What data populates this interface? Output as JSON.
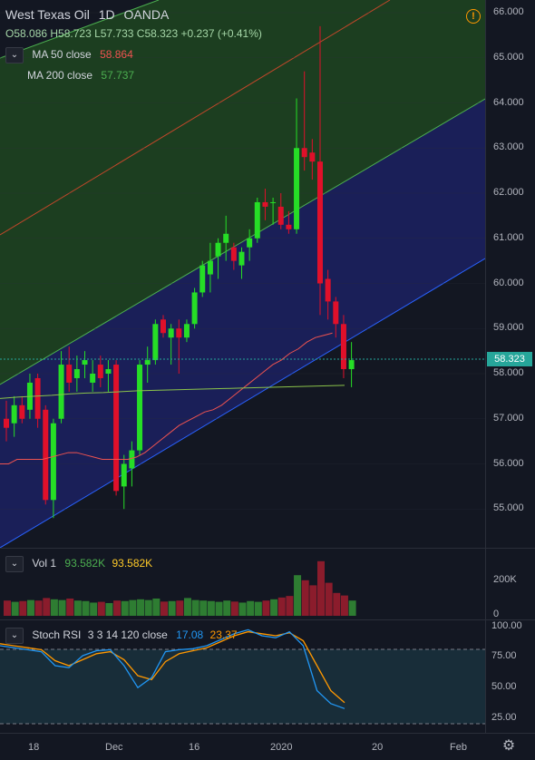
{
  "header": {
    "symbol": "West Texas Oil",
    "interval": "1D",
    "exchange": "OANDA",
    "ohlc": "O58.086  H58.723  L57.733  C58.323  +0.237  (+0.41%)",
    "alert_icon": "alert-icon"
  },
  "indicators": {
    "toggle_icon": "chevron-down-icon",
    "ma50": {
      "label": "MA 50 close",
      "value": "58.864",
      "color": "#ef5350"
    },
    "ma200": {
      "label": "MA 200 close",
      "value": "57.737",
      "color": "#4caf50"
    }
  },
  "price_axis": {
    "labels": [
      "66.000",
      "65.000",
      "64.000",
      "63.000",
      "62.000",
      "61.000",
      "60.000",
      "59.000",
      "58.000",
      "57.000",
      "56.000",
      "55.000"
    ],
    "last_price": "58.323",
    "last_price_color": "#26a69a"
  },
  "volume": {
    "label": "Vol",
    "param": "1",
    "value1": "93.582K",
    "value2": "93.582K",
    "axis_labels": [
      "200K",
      "0"
    ]
  },
  "stoch_rsi": {
    "label": "Stoch RSI",
    "params": "3 3 14 120 close",
    "k_value": "17.08",
    "d_value": "23.37",
    "k_color": "#2196f3",
    "d_color": "#ff9800",
    "axis_labels": [
      "100.00",
      "75.00",
      "50.00",
      "25.00"
    ]
  },
  "time_axis": {
    "labels": [
      "18",
      "Dec",
      "16",
      "2020",
      "20",
      "Feb"
    ],
    "settings_icon": "gear-icon"
  },
  "chart_data": {
    "type": "candlestick",
    "ylim": [
      54.0,
      66.0
    ],
    "candles": [
      {
        "o": 57.0,
        "h": 57.4,
        "l": 56.5,
        "c": 56.8
      },
      {
        "o": 56.9,
        "h": 57.5,
        "l": 56.6,
        "c": 57.3
      },
      {
        "o": 57.3,
        "h": 57.5,
        "l": 56.9,
        "c": 57.0
      },
      {
        "o": 57.2,
        "h": 58.0,
        "l": 57.0,
        "c": 57.8
      },
      {
        "o": 57.9,
        "h": 58.0,
        "l": 56.8,
        "c": 57.0
      },
      {
        "o": 57.2,
        "h": 57.3,
        "l": 55.1,
        "c": 55.2
      },
      {
        "o": 55.2,
        "h": 57.0,
        "l": 54.8,
        "c": 56.9
      },
      {
        "o": 57.0,
        "h": 58.5,
        "l": 56.9,
        "c": 58.2
      },
      {
        "o": 58.2,
        "h": 58.6,
        "l": 57.6,
        "c": 57.8
      },
      {
        "o": 57.9,
        "h": 58.4,
        "l": 57.6,
        "c": 58.1
      },
      {
        "o": 58.2,
        "h": 58.5,
        "l": 57.9,
        "c": 58.3
      },
      {
        "o": 57.8,
        "h": 58.3,
        "l": 57.6,
        "c": 58.0
      },
      {
        "o": 58.2,
        "h": 58.4,
        "l": 57.7,
        "c": 57.9
      },
      {
        "o": 58.0,
        "h": 58.3,
        "l": 57.6,
        "c": 58.1
      },
      {
        "o": 58.2,
        "h": 58.3,
        "l": 55.3,
        "c": 55.4
      },
      {
        "o": 55.5,
        "h": 56.2,
        "l": 55.0,
        "c": 56.0
      },
      {
        "o": 55.9,
        "h": 56.5,
        "l": 55.5,
        "c": 56.3
      },
      {
        "o": 56.3,
        "h": 58.3,
        "l": 56.2,
        "c": 58.2
      },
      {
        "o": 58.2,
        "h": 58.6,
        "l": 57.8,
        "c": 58.3
      },
      {
        "o": 58.3,
        "h": 59.2,
        "l": 58.2,
        "c": 59.1
      },
      {
        "o": 59.2,
        "h": 59.3,
        "l": 58.8,
        "c": 58.9
      },
      {
        "o": 58.8,
        "h": 59.1,
        "l": 58.2,
        "c": 59.0
      },
      {
        "o": 59.0,
        "h": 59.2,
        "l": 58.0,
        "c": 58.8
      },
      {
        "o": 58.8,
        "h": 59.2,
        "l": 58.7,
        "c": 59.1
      },
      {
        "o": 59.1,
        "h": 59.9,
        "l": 59.0,
        "c": 59.8
      },
      {
        "o": 59.8,
        "h": 60.5,
        "l": 59.7,
        "c": 60.4
      },
      {
        "o": 60.2,
        "h": 60.9,
        "l": 59.8,
        "c": 60.5
      },
      {
        "o": 60.6,
        "h": 61.0,
        "l": 60.1,
        "c": 60.9
      },
      {
        "o": 60.9,
        "h": 61.5,
        "l": 60.5,
        "c": 61.1
      },
      {
        "o": 60.8,
        "h": 60.9,
        "l": 60.3,
        "c": 60.5
      },
      {
        "o": 60.4,
        "h": 60.8,
        "l": 60.1,
        "c": 60.7
      },
      {
        "o": 60.8,
        "h": 61.2,
        "l": 60.5,
        "c": 61.0
      },
      {
        "o": 61.0,
        "h": 61.9,
        "l": 60.9,
        "c": 61.8
      },
      {
        "o": 61.8,
        "h": 62.1,
        "l": 61.4,
        "c": 61.7
      },
      {
        "o": 61.8,
        "h": 61.9,
        "l": 61.3,
        "c": 61.8
      },
      {
        "o": 61.7,
        "h": 62.0,
        "l": 61.2,
        "c": 61.3
      },
      {
        "o": 61.3,
        "h": 61.6,
        "l": 61.1,
        "c": 61.2
      },
      {
        "o": 61.2,
        "h": 64.1,
        "l": 61.1,
        "c": 63.0
      },
      {
        "o": 63.0,
        "h": 64.7,
        "l": 62.5,
        "c": 62.8
      },
      {
        "o": 62.9,
        "h": 63.2,
        "l": 62.3,
        "c": 62.7
      },
      {
        "o": 62.7,
        "h": 65.7,
        "l": 59.3,
        "c": 60.0
      },
      {
        "o": 60.1,
        "h": 60.3,
        "l": 59.2,
        "c": 59.6
      },
      {
        "o": 59.6,
        "h": 59.7,
        "l": 58.8,
        "c": 59.1
      },
      {
        "o": 59.1,
        "h": 59.3,
        "l": 57.9,
        "c": 58.1
      },
      {
        "o": 58.1,
        "h": 58.7,
        "l": 57.7,
        "c": 58.3
      }
    ],
    "volumes": [
      60,
      55,
      58,
      62,
      60,
      70,
      65,
      62,
      68,
      60,
      58,
      52,
      55,
      50,
      60,
      58,
      62,
      65,
      62,
      68,
      56,
      58,
      60,
      70,
      62,
      60,
      58,
      55,
      60,
      56,
      52,
      58,
      55,
      60,
      65,
      72,
      78,
      160,
      140,
      120,
      215,
      130,
      90,
      80,
      60
    ],
    "ma50": [
      56.0,
      56.0,
      56.1,
      56.1,
      56.1,
      56.1,
      56.15,
      56.2,
      56.25,
      56.25,
      56.2,
      56.15,
      56.1,
      56.1,
      56.1,
      56.1,
      56.15,
      56.25,
      56.4,
      56.55,
      56.7,
      56.85,
      56.95,
      57.05,
      57.15,
      57.2,
      57.3,
      57.45,
      57.6,
      57.75,
      57.9,
      58.05,
      58.2,
      58.3,
      58.45,
      58.55,
      58.7,
      58.8,
      58.85,
      58.9
    ],
    "ma200": [
      57.45,
      57.48,
      57.5,
      57.52,
      57.55,
      57.57,
      57.58,
      57.6,
      57.62,
      57.63,
      57.64,
      57.65,
      57.66,
      57.67,
      57.68,
      57.69,
      57.7,
      57.71,
      57.72,
      57.73,
      57.74
    ],
    "stoch_k": [
      80,
      78,
      76,
      74,
      60,
      58,
      70,
      75,
      76,
      60,
      38,
      48,
      74,
      76,
      77,
      80,
      86,
      92,
      96,
      90,
      88,
      94,
      80,
      35,
      22,
      17
    ],
    "stoch_d": [
      82,
      80,
      78,
      76,
      65,
      60,
      66,
      72,
      74,
      66,
      50,
      46,
      64,
      72,
      75,
      78,
      84,
      90,
      94,
      92,
      90,
      93,
      85,
      60,
      35,
      23
    ]
  }
}
